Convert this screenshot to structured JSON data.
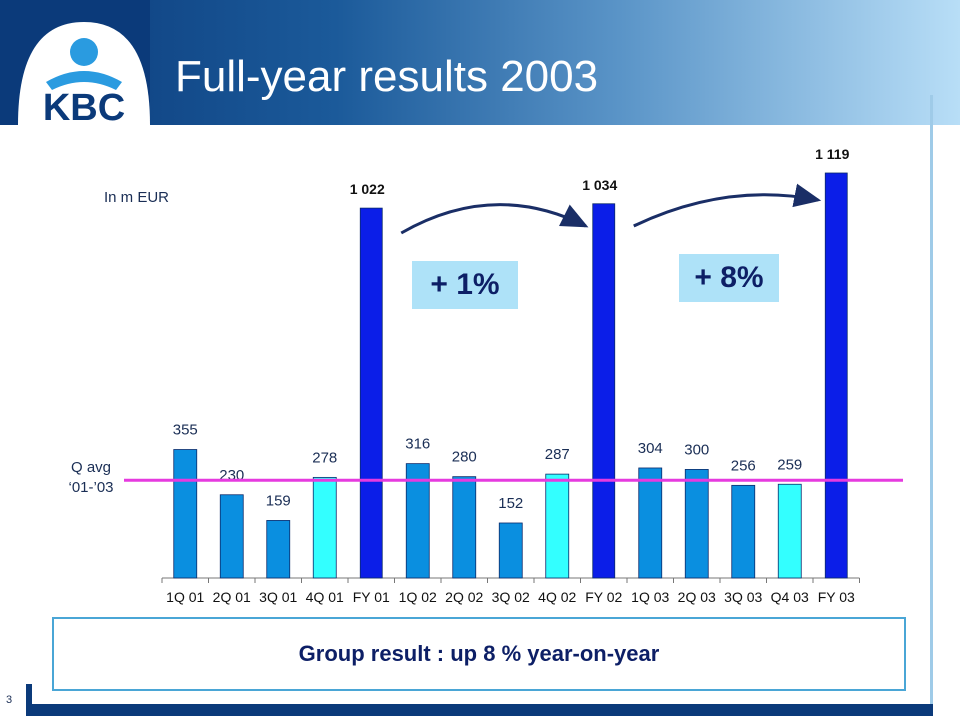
{
  "slide": {
    "title": "Full-year results 2003",
    "page_number": "3",
    "unit_note": "In m EUR",
    "avg_label_line1": "Q avg",
    "avg_label_line2": "‘01-’03",
    "growth_badges": [
      "+ 1%",
      "+ 8%"
    ],
    "caption": "Group result : up 8 % year-on-year",
    "logo_text": "KBC"
  },
  "colors": {
    "quarter_bar": "#0a8fe0",
    "q4_bar": "#33ffff",
    "fy_bar": "#0b1ee8",
    "avg_line": "#e63adf",
    "arrow": "#1a2e66",
    "header_dark": "#0b3a7a"
  },
  "chart_data": {
    "type": "bar",
    "categories": [
      "1Q 01",
      "2Q 01",
      "3Q 01",
      "4Q 01",
      "FY 01",
      "1Q 02",
      "2Q 02",
      "3Q 02",
      "4Q 02",
      "FY 02",
      "1Q 03",
      "2Q 03",
      "3Q 03",
      "Q4 03",
      "FY 03"
    ],
    "values": [
      355,
      230,
      159,
      278,
      1022,
      316,
      280,
      152,
      287,
      1034,
      304,
      300,
      256,
      259,
      1119
    ],
    "value_labels": [
      "355",
      "230",
      "159",
      "278",
      "1 022",
      "316",
      "280",
      "152",
      "287",
      "1 034",
      "304",
      "300",
      "256",
      "259",
      "1 119"
    ],
    "bar_kind": [
      "quarter",
      "quarter",
      "quarter",
      "q4",
      "fy",
      "quarter",
      "quarter",
      "quarter",
      "q4",
      "fy",
      "quarter",
      "quarter",
      "quarter",
      "q4",
      "fy"
    ],
    "reference_line": {
      "value": 270
    },
    "ylim": [
      0,
      1119
    ]
  }
}
